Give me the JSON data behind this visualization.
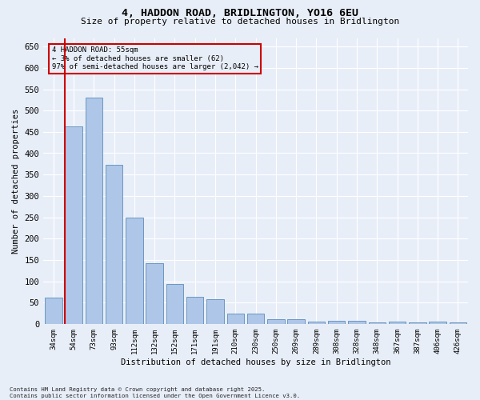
{
  "title_line1": "4, HADDON ROAD, BRIDLINGTON, YO16 6EU",
  "title_line2": "Size of property relative to detached houses in Bridlington",
  "xlabel": "Distribution of detached houses by size in Bridlington",
  "ylabel": "Number of detached properties",
  "categories": [
    "34sqm",
    "54sqm",
    "73sqm",
    "93sqm",
    "112sqm",
    "132sqm",
    "152sqm",
    "171sqm",
    "191sqm",
    "210sqm",
    "230sqm",
    "250sqm",
    "269sqm",
    "289sqm",
    "308sqm",
    "328sqm",
    "348sqm",
    "367sqm",
    "387sqm",
    "406sqm",
    "426sqm"
  ],
  "values": [
    62,
    462,
    530,
    372,
    250,
    142,
    93,
    63,
    57,
    25,
    25,
    11,
    11,
    5,
    8,
    8,
    4,
    5,
    4,
    5,
    3
  ],
  "bar_color": "#aec6e8",
  "bar_edge_color": "#5b8db8",
  "highlight_color": "#cc0000",
  "highlight_bar_index": 1,
  "ylim": [
    0,
    670
  ],
  "yticks": [
    0,
    50,
    100,
    150,
    200,
    250,
    300,
    350,
    400,
    450,
    500,
    550,
    600,
    650
  ],
  "annotation_title": "4 HADDON ROAD: 55sqm",
  "annotation_line2": "← 3% of detached houses are smaller (62)",
  "annotation_line3": "97% of semi-detached houses are larger (2,042) →",
  "background_color": "#e8eef8",
  "grid_color": "#ffffff",
  "footer_line1": "Contains HM Land Registry data © Crown copyright and database right 2025.",
  "footer_line2": "Contains public sector information licensed under the Open Government Licence v3.0."
}
